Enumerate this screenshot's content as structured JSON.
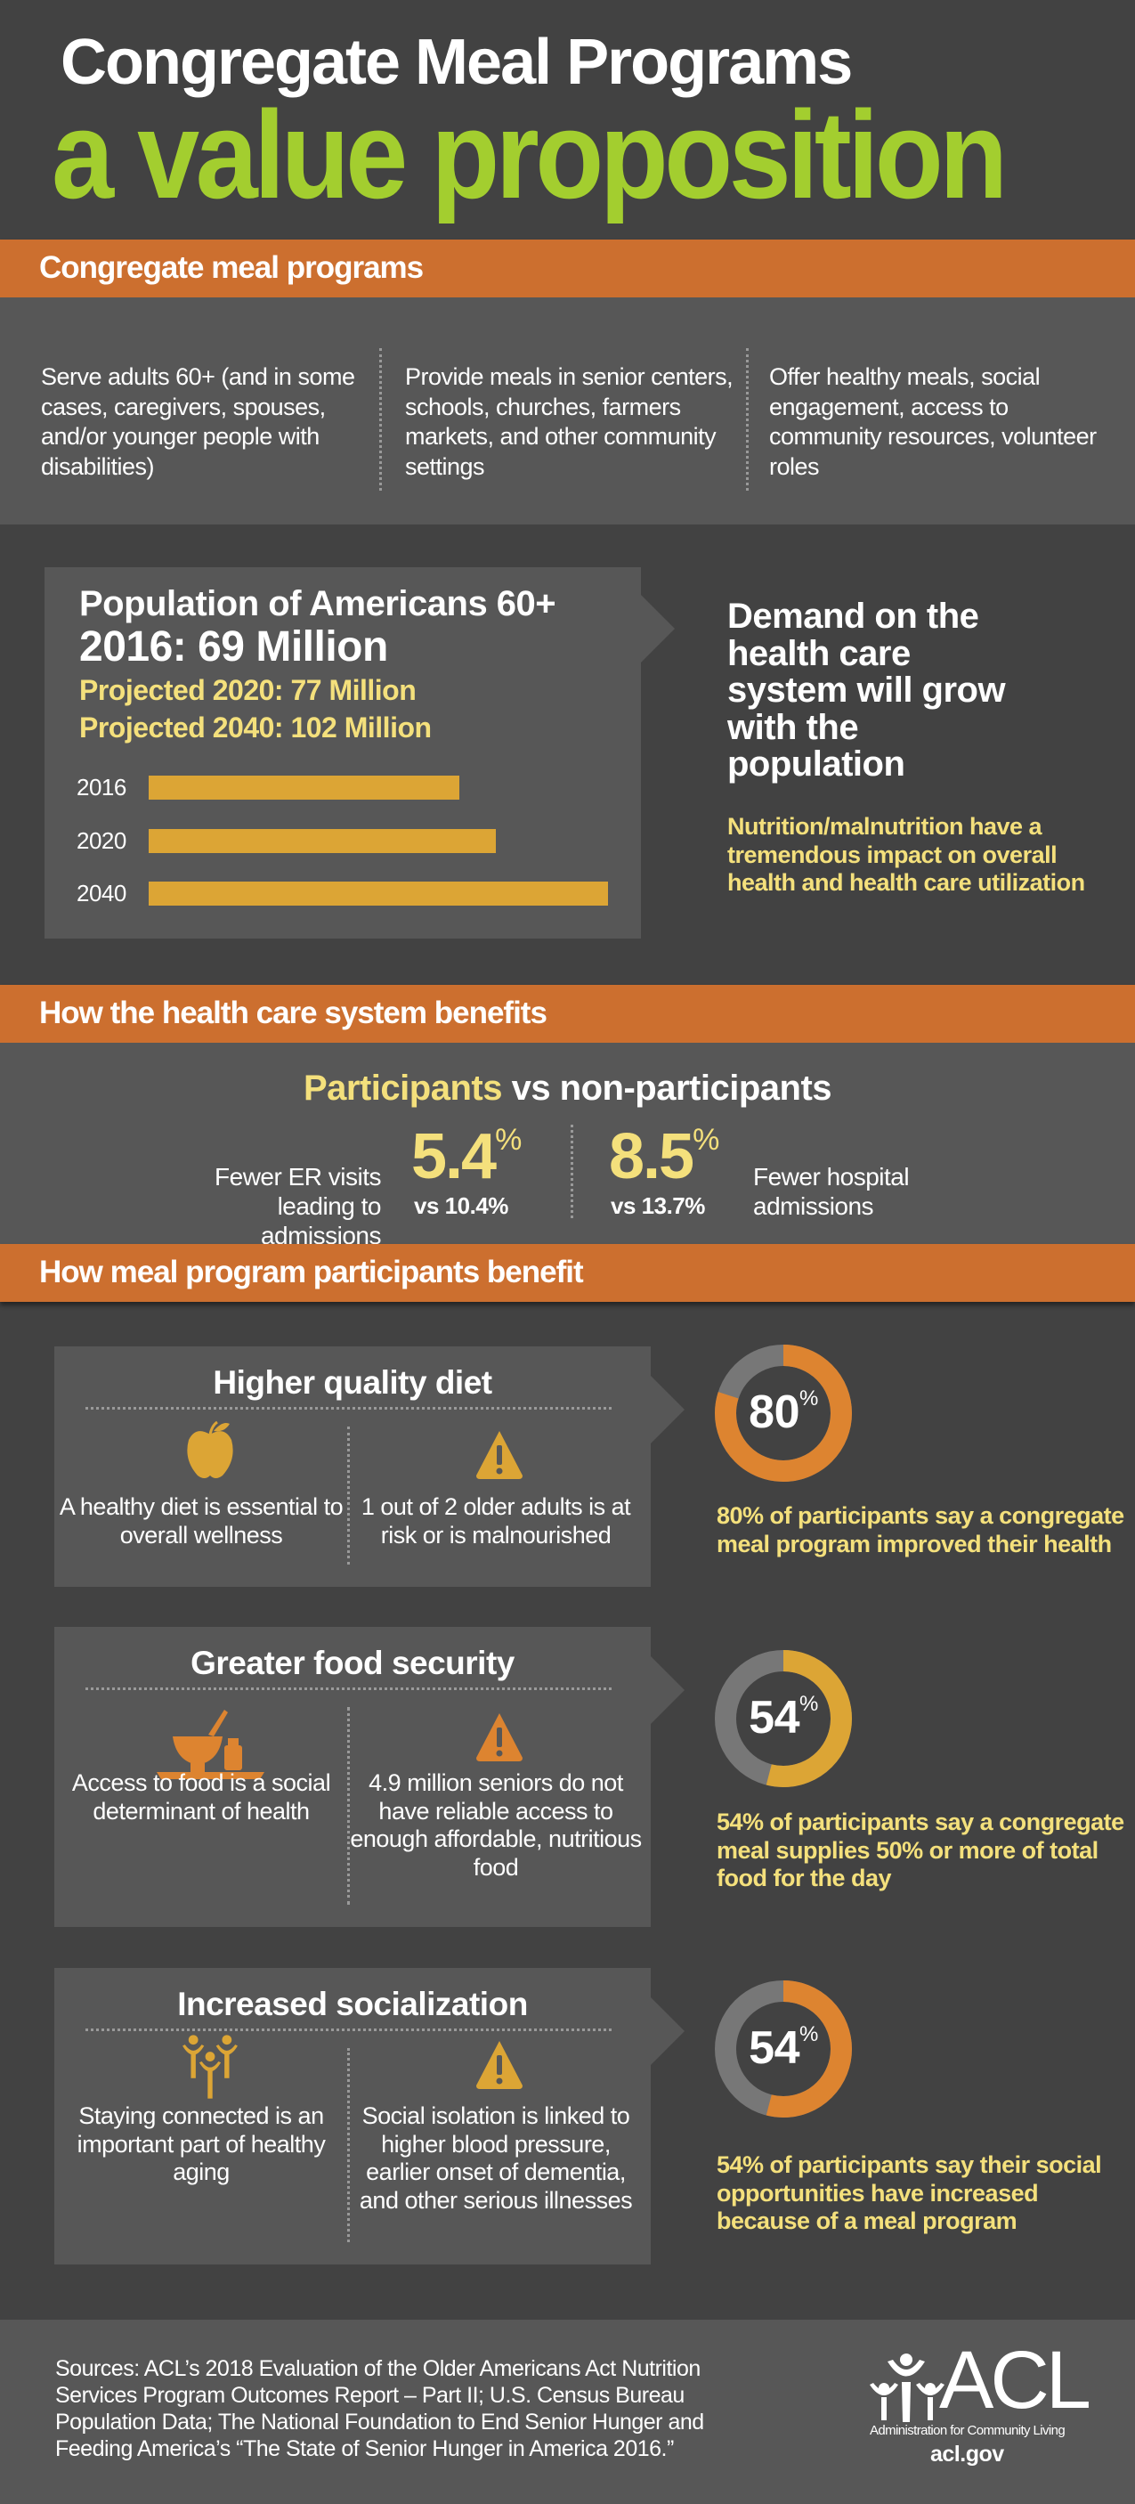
{
  "header": {
    "title": "Congregate Meal Programs",
    "subtitle": "a value proposition"
  },
  "section1": {
    "title": "Congregate meal programs",
    "columns": [
      "Serve adults 60+ (and in some cases, caregivers, spouses, and/or younger people with disabilities)",
      "Provide meals in senior centers, schools, churches, farmers markets, and other community settings",
      "Offer healthy meals, social engagement, access to community resources, volunteer roles"
    ]
  },
  "population": {
    "title": "Population of Americans 60+",
    "current": "2016: 69 Million",
    "proj2020": "Projected 2020: 77 Million",
    "proj2040": "Projected 2040: 102 Million",
    "demand": "Demand on the health care system will grow with the population",
    "nutrition": "Nutrition/malnutrition have a tremendous impact on overall health and health care utilization"
  },
  "chart_data": {
    "type": "bar",
    "orientation": "horizontal",
    "categories": [
      "2016",
      "2020",
      "2040"
    ],
    "values": [
      69,
      77,
      102
    ],
    "ylabel": "Population of Americans 60+ (millions)"
  },
  "section2": {
    "title": "How the health care system benefits",
    "heading_highlight": "Participants",
    "heading_rest": " vs non-participants",
    "stat1": {
      "label": "Fewer ER visits leading to admissions",
      "value": "5.4",
      "unit": "%",
      "compare": "vs 10.4%"
    },
    "stat2": {
      "label": "Fewer hospital admissions",
      "value": "8.5",
      "unit": "%",
      "compare": "vs 13.7%"
    }
  },
  "section3": {
    "title": "How meal program participants benefit",
    "benefits": [
      {
        "title": "Higher quality diet",
        "left_icon": "apple-icon",
        "left": "A healthy diet is essential to overall wellness",
        "right": "1 out of 2 older adults is at risk or is malnourished",
        "percent": 80,
        "percent_label": "80",
        "color": "#DD8430",
        "stat": "80% of participants say a congregate meal program improved their health"
      },
      {
        "title": "Greater food security",
        "left_icon": "food-bowl-icon",
        "left": "Access to food is a social determinant of health",
        "right": "4.9 million seniors do not have reliable access to enough affordable, nutritious food",
        "percent": 54,
        "percent_label": "54",
        "color": "#DCA535",
        "stat": "54% of participants say a congregate meal supplies 50% or more of total food for the day"
      },
      {
        "title": "Increased socialization",
        "left_icon": "people-group-icon",
        "left": "Staying connected is an important part of healthy aging",
        "right": "Social isolation is linked to higher blood pressure, earlier onset of dementia, and other serious illnesses",
        "percent": 54,
        "percent_label": "54",
        "color": "#DD8430",
        "stat": "54% of participants say their social opportunities have increased because of a meal program"
      }
    ],
    "percent_sign": "%"
  },
  "footer": {
    "sources": "Sources: ACL’s 2018 Evaluation of the Older Americans Act Nutrition Services Program Outcomes Report – Part II; U.S. Census Bureau Population Data; The National Foundation to End Senior Hunger and Feeding America’s “The State of Senior Hunger in America 2016.”",
    "logo_text": "ACL",
    "logo_sub": "Administration for Community Living",
    "url": "acl.gov"
  },
  "colors": {
    "orange": "#CC6F2F",
    "green": "#A3CE2F",
    "yellow": "#F4E07C",
    "bar": "#DCA535",
    "gray": "#777777"
  }
}
